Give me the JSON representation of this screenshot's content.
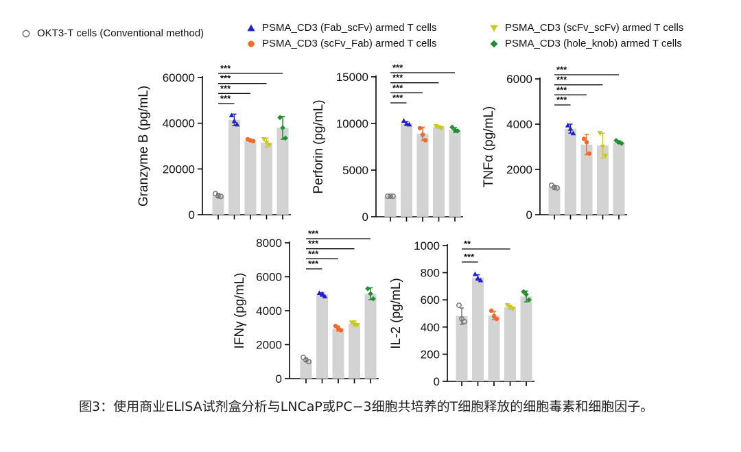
{
  "legend": [
    {
      "name": "OKT3-T cells (Conventional method)",
      "color": "#777777",
      "marker": "circle-open"
    },
    {
      "name": "PSMA_CD3 (Fab_scFv) armed T cells",
      "color": "#2222cc",
      "marker": "triangle-up"
    },
    {
      "name": "PSMA_CD3 (scFv_Fab) armed T cells",
      "color": "#ef6b2c",
      "marker": "circle"
    },
    {
      "name": "PSMA_CD3 (scFv_scFv) armed T cells",
      "color": "#c8c81e",
      "marker": "triangle-down"
    },
    {
      "name": "PSMA_CD3 (hole_knob) armed T cells",
      "color": "#1f8f2f",
      "marker": "diamond"
    }
  ],
  "chart_data": [
    {
      "type": "bar",
      "ylabel": "Granzyme B (pg/mL)",
      "ylim": [
        0,
        60000
      ],
      "yticks": [
        0,
        20000,
        40000,
        60000
      ],
      "values": [
        8500,
        41500,
        32500,
        31500,
        38000
      ],
      "errors": [
        800,
        2500,
        400,
        2000,
        5000
      ],
      "points": [
        [
          9200,
          8200,
          8000
        ],
        [
          43500,
          41000,
          39500
        ],
        [
          33000,
          32500,
          32200
        ],
        [
          33000,
          31500,
          30500
        ],
        [
          42500,
          38000,
          33500
        ]
      ],
      "significance": [
        {
          "from": 0,
          "to": 1,
          "label": "***"
        },
        {
          "from": 0,
          "to": 2,
          "label": "***"
        },
        {
          "from": 0,
          "to": 3,
          "label": "***"
        },
        {
          "from": 0,
          "to": 4,
          "label": "***"
        }
      ]
    },
    {
      "type": "bar",
      "ylabel": "Perforin (pg/mL)",
      "ylim": [
        0,
        15000
      ],
      "yticks": [
        0,
        5000,
        10000,
        15000
      ],
      "values": [
        2200,
        10000,
        8900,
        9600,
        9300
      ],
      "errors": [
        100,
        200,
        700,
        100,
        250
      ],
      "points": [
        [
          2200,
          2200,
          2200
        ],
        [
          10300,
          10000,
          9900
        ],
        [
          9500,
          8800,
          8200
        ],
        [
          9700,
          9600,
          9500
        ],
        [
          9600,
          9300,
          9200
        ]
      ],
      "significance": [
        {
          "from": 0,
          "to": 1,
          "label": "***"
        },
        {
          "from": 0,
          "to": 2,
          "label": "***"
        },
        {
          "from": 0,
          "to": 3,
          "label": "***"
        },
        {
          "from": 0,
          "to": 4,
          "label": "***"
        }
      ]
    },
    {
      "type": "bar",
      "ylabel": "TNFα (pg/mL)",
      "ylim": [
        0,
        6000
      ],
      "yticks": [
        0,
        2000,
        4000,
        6000
      ],
      "values": [
        1220,
        3800,
        3100,
        3050,
        3200
      ],
      "errors": [
        70,
        200,
        450,
        550,
        60
      ],
      "points": [
        [
          1300,
          1200,
          1180
        ],
        [
          3950,
          3800,
          3600
        ],
        [
          3350,
          3200,
          2700
        ],
        [
          3600,
          3000,
          2600
        ],
        [
          3280,
          3200,
          3150
        ]
      ],
      "significance": [
        {
          "from": 0,
          "to": 1,
          "label": "***"
        },
        {
          "from": 0,
          "to": 2,
          "label": "***"
        },
        {
          "from": 0,
          "to": 3,
          "label": "***"
        },
        {
          "from": 0,
          "to": 4,
          "label": "***"
        }
      ]
    },
    {
      "type": "bar",
      "ylabel": "IFNγ (pg/mL)",
      "ylim": [
        0,
        8000
      ],
      "yticks": [
        0,
        2000,
        4000,
        6000,
        8000
      ],
      "values": [
        1100,
        4950,
        2950,
        3250,
        5000
      ],
      "errors": [
        100,
        100,
        150,
        150,
        350
      ],
      "points": [
        [
          1250,
          1100,
          1000
        ],
        [
          5050,
          5000,
          4850
        ],
        [
          3100,
          2950,
          2850
        ],
        [
          3300,
          3200,
          3150
        ],
        [
          5300,
          5000,
          4700
        ]
      ],
      "significance": [
        {
          "from": 0,
          "to": 1,
          "label": "***"
        },
        {
          "from": 0,
          "to": 2,
          "label": "***"
        },
        {
          "from": 0,
          "to": 3,
          "label": "***"
        },
        {
          "from": 0,
          "to": 4,
          "label": "***"
        }
      ]
    },
    {
      "type": "bar",
      "ylabel": "IL-2 (pg/mL)",
      "ylim": [
        0,
        1000
      ],
      "yticks": [
        0,
        200,
        400,
        600,
        800,
        1000
      ],
      "values": [
        480,
        765,
        485,
        545,
        625
      ],
      "errors": [
        60,
        20,
        30,
        15,
        40
      ],
      "points": [
        [
          560,
          460,
          440
        ],
        [
          790,
          760,
          745
        ],
        [
          520,
          480,
          460
        ],
        [
          560,
          545,
          535
        ],
        [
          660,
          640,
          600
        ]
      ],
      "significance": [
        {
          "from": 0,
          "to": 1,
          "label": "***"
        },
        {
          "from": 0,
          "to": 3,
          "label": "**"
        }
      ]
    }
  ],
  "caption": "图3：使用商业ELISA试剂盒分析与LNCaP或PC−3细胞共培养的T细胞释放的细胞毒素和细胞因子。"
}
